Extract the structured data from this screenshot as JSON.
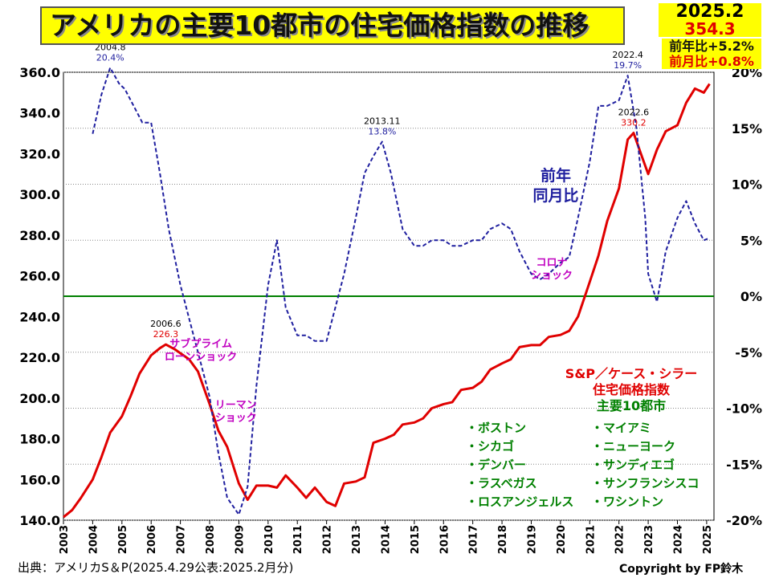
{
  "title": "アメリカの主要10都市の住宅価格指数の推移",
  "latest": {
    "date": "2025.2",
    "value": "354.3",
    "yoy": "前年比+5.2%",
    "mom": "前月比+0.8%"
  },
  "legend": {
    "index_label": [
      "S&P／ケース・シラー",
      "住宅価格指数",
      "主要10都市"
    ],
    "yoy_label": [
      "前年",
      "同月比"
    ],
    "cities_col1": [
      "・ボストン",
      "・シカゴ",
      "・デンバー",
      "・ラスベガス",
      "・ロスアンジェルス"
    ],
    "cities_col2": [
      "・マイアミ",
      "・ニューヨーク",
      "・サンディエゴ",
      "・サンフランシスコ",
      "・ワシントン"
    ]
  },
  "source": "出典：アメリカS＆P(2025.4.29公表:2025.2月分)",
  "credit": "Copyright by FP鈴木",
  "colors": {
    "index": "#e00000",
    "yoy": "#1f1f9f",
    "zero_line": "#008000",
    "title_bg": "#ffff00",
    "annotation": "#c000c0"
  },
  "chart_data": {
    "type": "line",
    "x_ticks": [
      "2003",
      "2004",
      "2005",
      "2006",
      "2007",
      "2008",
      "2009",
      "2010",
      "2011",
      "2012",
      "2013",
      "2014",
      "2015",
      "2016",
      "2017",
      "2018",
      "2019",
      "2020",
      "2021",
      "2022",
      "2023",
      "2024",
      "2025"
    ],
    "y_left": {
      "ticks": [
        "140.0",
        "160.0",
        "180.0",
        "200.0",
        "220.0",
        "240.0",
        "260.0",
        "280.0",
        "300.0",
        "320.0",
        "340.0",
        "360.0"
      ],
      "range": [
        140,
        360
      ]
    },
    "y_right": {
      "ticks": [
        "-20%",
        "-15%",
        "-10%",
        "-5%",
        "0%",
        "5%",
        "10%",
        "15%",
        "20%"
      ],
      "range": [
        -20,
        20
      ]
    },
    "series": [
      {
        "name": "S&P／ケース・シラー住宅価格指数 主要10都市",
        "axis": "left",
        "points": [
          [
            2003.0,
            141.5
          ],
          [
            2003.3,
            145
          ],
          [
            2003.6,
            151
          ],
          [
            2004.0,
            160
          ],
          [
            2004.3,
            171
          ],
          [
            2004.6,
            183
          ],
          [
            2005.0,
            191
          ],
          [
            2005.3,
            201
          ],
          [
            2005.6,
            212
          ],
          [
            2006.0,
            221
          ],
          [
            2006.3,
            224.5
          ],
          [
            2006.5,
            226.3
          ],
          [
            2006.8,
            224
          ],
          [
            2007.0,
            222
          ],
          [
            2007.3,
            219
          ],
          [
            2007.6,
            213
          ],
          [
            2008.0,
            197
          ],
          [
            2008.3,
            184
          ],
          [
            2008.6,
            176
          ],
          [
            2009.0,
            158
          ],
          [
            2009.3,
            150
          ],
          [
            2009.6,
            157
          ],
          [
            2010.0,
            157
          ],
          [
            2010.3,
            156
          ],
          [
            2010.6,
            162
          ],
          [
            2011.0,
            156
          ],
          [
            2011.3,
            151
          ],
          [
            2011.6,
            156
          ],
          [
            2012.0,
            149
          ],
          [
            2012.3,
            147
          ],
          [
            2012.6,
            158
          ],
          [
            2013.0,
            159
          ],
          [
            2013.3,
            161
          ],
          [
            2013.6,
            178
          ],
          [
            2014.0,
            180
          ],
          [
            2014.3,
            182
          ],
          [
            2014.6,
            187
          ],
          [
            2015.0,
            188
          ],
          [
            2015.3,
            190
          ],
          [
            2015.6,
            195
          ],
          [
            2016.0,
            197
          ],
          [
            2016.3,
            198
          ],
          [
            2016.6,
            204
          ],
          [
            2017.0,
            205
          ],
          [
            2017.3,
            208
          ],
          [
            2017.6,
            214
          ],
          [
            2018.0,
            217
          ],
          [
            2018.3,
            219
          ],
          [
            2018.6,
            225
          ],
          [
            2019.0,
            226
          ],
          [
            2019.3,
            226
          ],
          [
            2019.6,
            230
          ],
          [
            2020.0,
            231
          ],
          [
            2020.3,
            233
          ],
          [
            2020.6,
            240
          ],
          [
            2021.0,
            257
          ],
          [
            2021.3,
            270
          ],
          [
            2021.6,
            287
          ],
          [
            2022.0,
            303
          ],
          [
            2022.3,
            327
          ],
          [
            2022.5,
            330.2
          ],
          [
            2022.8,
            318
          ],
          [
            2023.0,
            310
          ],
          [
            2023.3,
            322
          ],
          [
            2023.6,
            331
          ],
          [
            2024.0,
            334
          ],
          [
            2024.3,
            345
          ],
          [
            2024.6,
            352
          ],
          [
            2024.9,
            350
          ],
          [
            2025.1,
            354.3
          ]
        ]
      },
      {
        "name": "前年同月比",
        "axis": "right",
        "points": [
          [
            2004.0,
            14.5
          ],
          [
            2004.3,
            18
          ],
          [
            2004.6,
            20.4
          ],
          [
            2004.9,
            19
          ],
          [
            2005.1,
            18.5
          ],
          [
            2005.4,
            17
          ],
          [
            2005.7,
            15.5
          ],
          [
            2006.0,
            15.5
          ],
          [
            2006.3,
            11
          ],
          [
            2006.6,
            6
          ],
          [
            2007.0,
            1
          ],
          [
            2007.3,
            -2
          ],
          [
            2007.6,
            -5
          ],
          [
            2008.0,
            -9
          ],
          [
            2008.3,
            -14
          ],
          [
            2008.6,
            -18
          ],
          [
            2009.0,
            -19.5
          ],
          [
            2009.3,
            -17
          ],
          [
            2009.6,
            -8
          ],
          [
            2010.0,
            1
          ],
          [
            2010.3,
            5
          ],
          [
            2010.6,
            -1
          ],
          [
            2011.0,
            -3.5
          ],
          [
            2011.3,
            -3.5
          ],
          [
            2011.6,
            -4
          ],
          [
            2012.0,
            -4
          ],
          [
            2012.3,
            -1
          ],
          [
            2012.6,
            2
          ],
          [
            2013.0,
            7
          ],
          [
            2013.3,
            11
          ],
          [
            2013.6,
            12.5
          ],
          [
            2013.9,
            13.8
          ],
          [
            2014.2,
            11
          ],
          [
            2014.6,
            6
          ],
          [
            2015.0,
            4.5
          ],
          [
            2015.3,
            4.5
          ],
          [
            2015.6,
            5
          ],
          [
            2016.0,
            5
          ],
          [
            2016.3,
            4.5
          ],
          [
            2016.6,
            4.5
          ],
          [
            2017.0,
            5
          ],
          [
            2017.3,
            5
          ],
          [
            2017.6,
            6
          ],
          [
            2018.0,
            6.5
          ],
          [
            2018.3,
            6
          ],
          [
            2018.6,
            4
          ],
          [
            2019.0,
            2
          ],
          [
            2019.3,
            1.5
          ],
          [
            2019.6,
            2
          ],
          [
            2020.0,
            3
          ],
          [
            2020.3,
            3.5
          ],
          [
            2020.6,
            7
          ],
          [
            2021.0,
            12
          ],
          [
            2021.3,
            17
          ],
          [
            2021.6,
            17
          ],
          [
            2022.0,
            17.5
          ],
          [
            2022.3,
            19.7
          ],
          [
            2022.6,
            15
          ],
          [
            2022.9,
            7
          ],
          [
            2023.0,
            2
          ],
          [
            2023.3,
            -0.5
          ],
          [
            2023.6,
            4
          ],
          [
            2024.0,
            7
          ],
          [
            2024.3,
            8.5
          ],
          [
            2024.6,
            6.5
          ],
          [
            2024.9,
            5
          ],
          [
            2025.1,
            5.2
          ]
        ]
      }
    ],
    "point_labels": [
      {
        "date": "2004.8",
        "value": "20.4%",
        "x": 2004.6,
        "y": 20.4,
        "axis": "right",
        "color": "#1f1f9f"
      },
      {
        "date": "2006.6",
        "value": "226.3",
        "x": 2006.5,
        "y": 226.3,
        "axis": "left",
        "color": "#e00000"
      },
      {
        "date": "2013.11",
        "value": "13.8%",
        "x": 2013.9,
        "y": 13.8,
        "axis": "right",
        "color": "#1f1f9f"
      },
      {
        "date": "2022.4",
        "value": "19.7%",
        "x": 2022.3,
        "y": 19.7,
        "axis": "right",
        "color": "#1f1f9f"
      },
      {
        "date": "2022.6",
        "value": "330.2",
        "x": 2022.5,
        "y": 330.2,
        "axis": "left",
        "color": "#e00000"
      },
      {
        "date": "2025.2",
        "value": "354.3",
        "x": 2025.1,
        "y": 354.3,
        "axis": "left",
        "color": "#e00000"
      }
    ],
    "annotations": [
      {
        "lines": [
          "サブプライム",
          "ローンショック"
        ],
        "x": 2007.7,
        "y": 225,
        "axis": "left"
      },
      {
        "lines": [
          "リーマン",
          "ショック"
        ],
        "x": 2008.9,
        "y": 195,
        "axis": "left"
      },
      {
        "lines": [
          "コロナ",
          "ショック"
        ],
        "x": 2019.7,
        "y": 265,
        "axis": "left"
      }
    ],
    "gridlines": "dotted",
    "zero_line": true
  }
}
